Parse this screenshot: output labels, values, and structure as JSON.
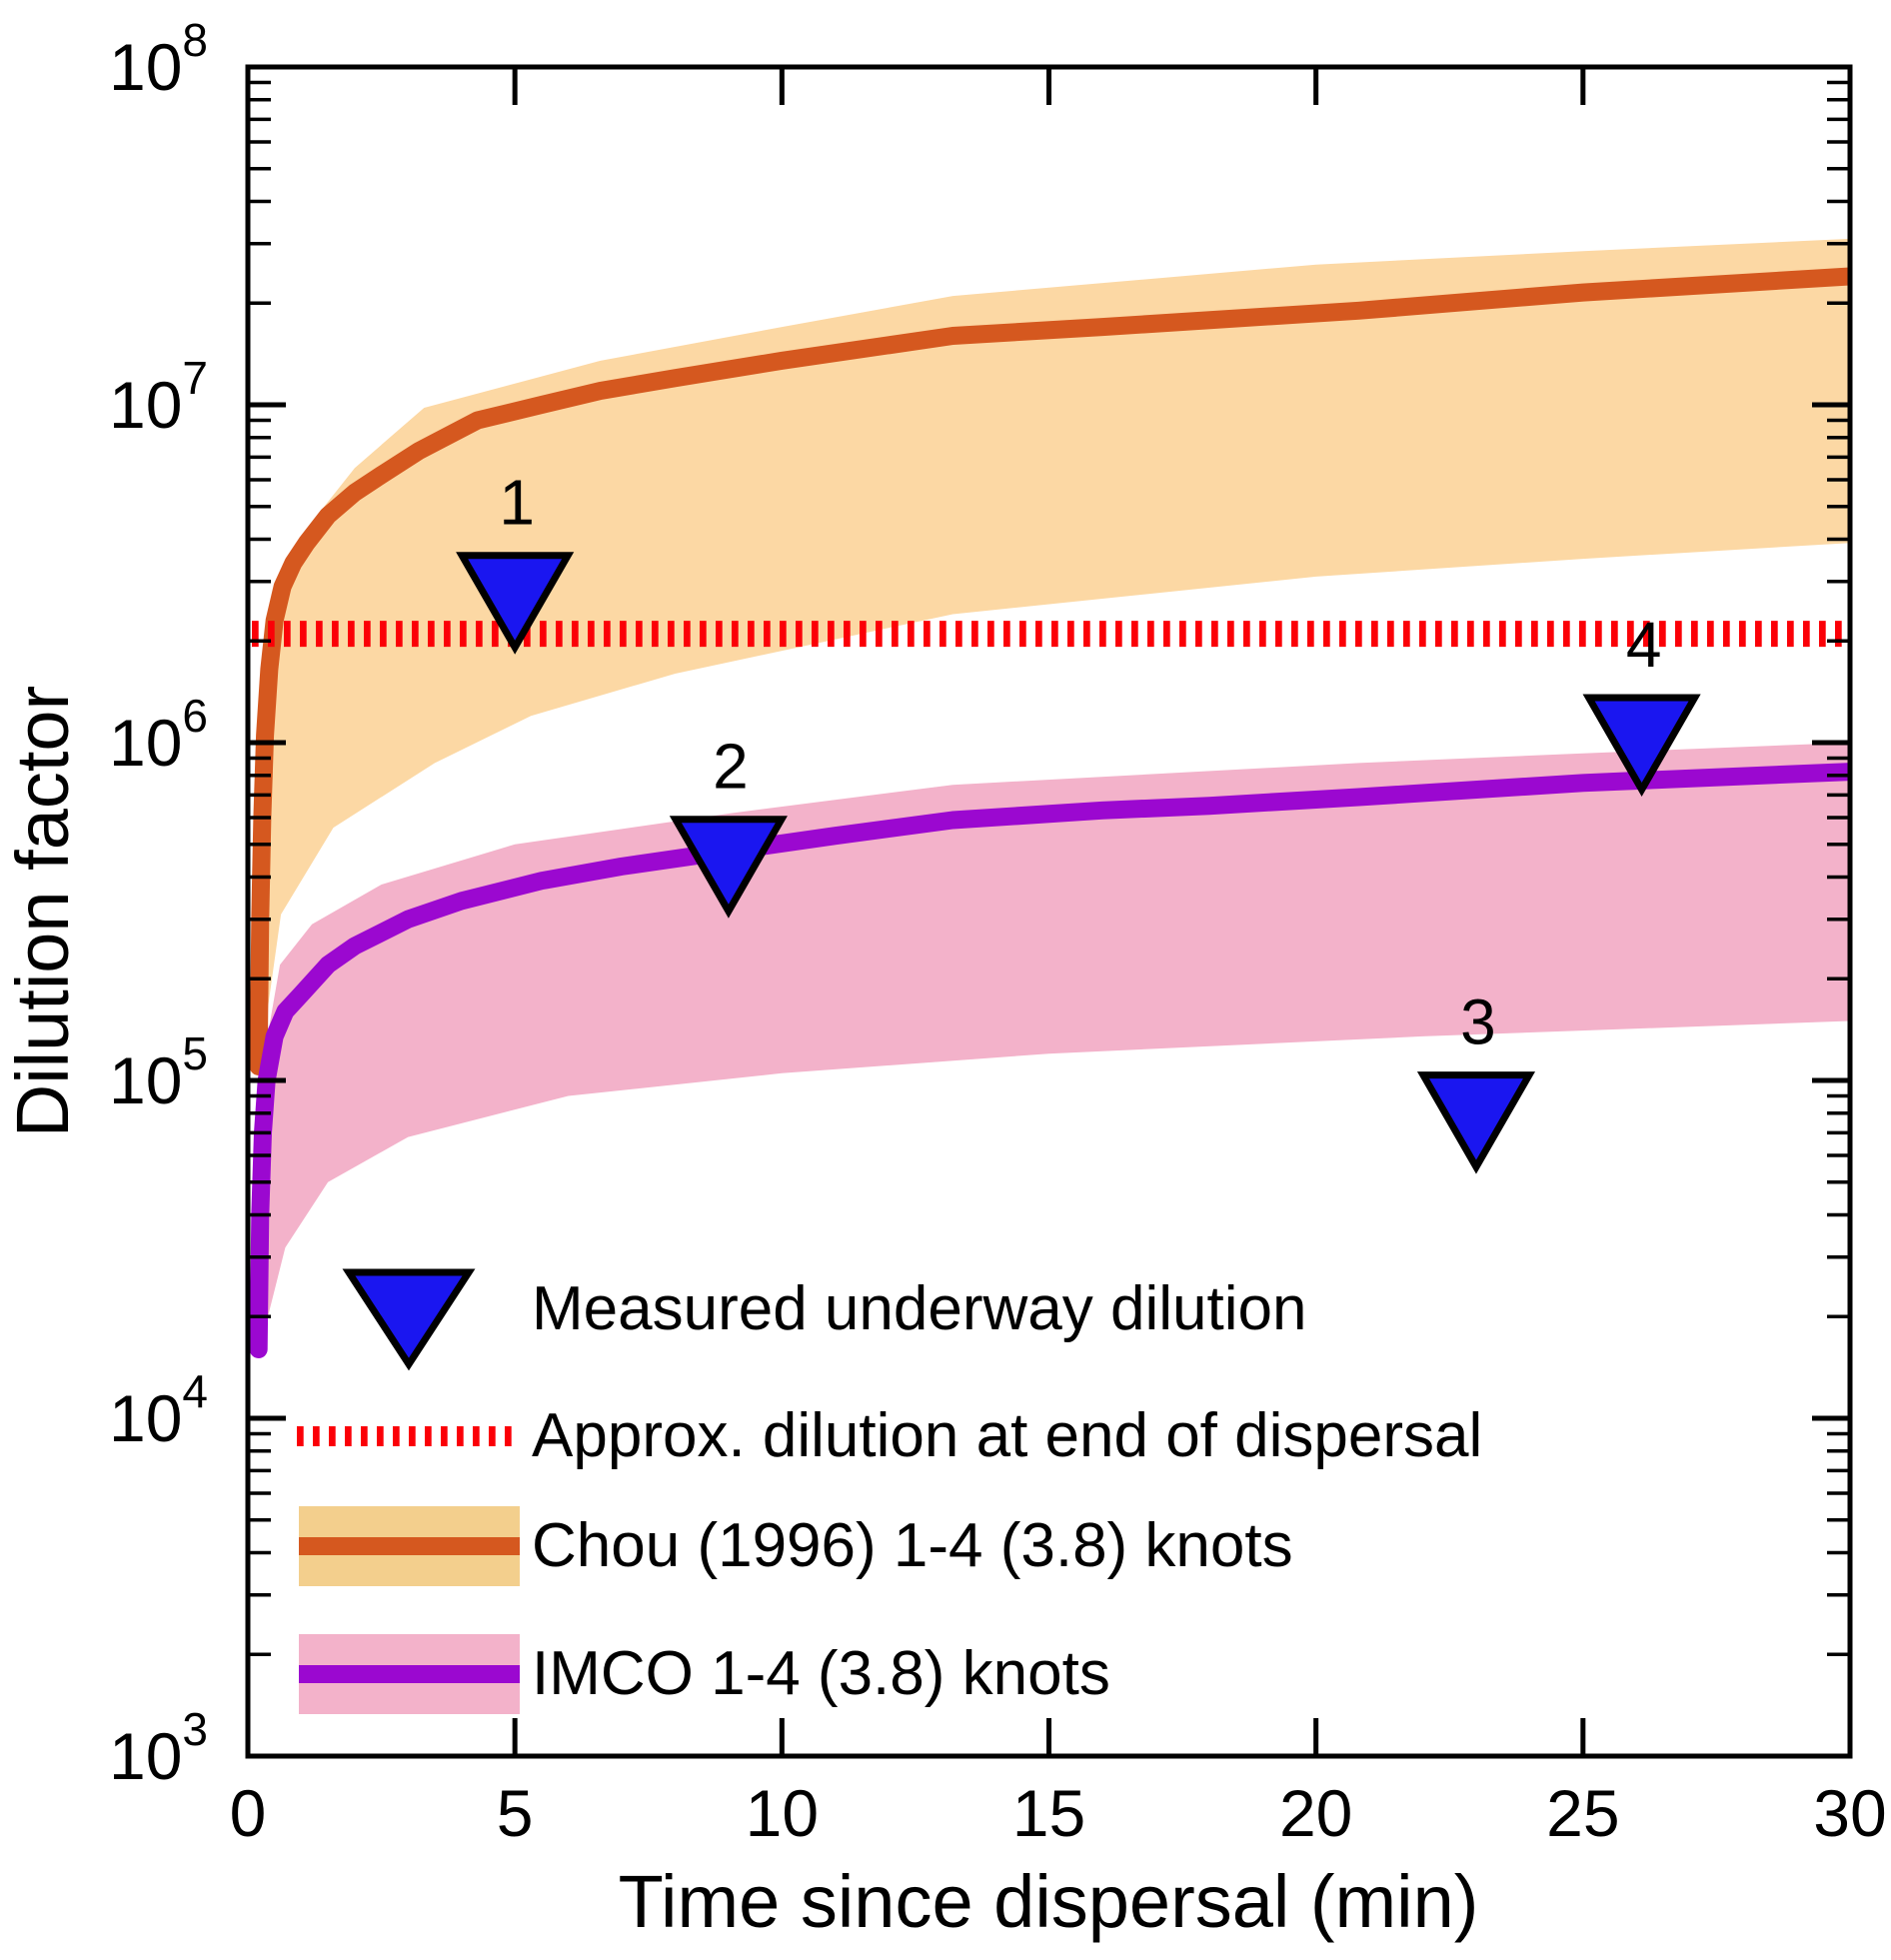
{
  "figure": {
    "background": "#ffffff",
    "axis_color": "#000000"
  },
  "chart_data": {
    "type": "line",
    "title": "",
    "xlabel": "Time since dispersal (min)",
    "ylabel": "Dilution factor",
    "x_range": [
      0,
      30
    ],
    "y_log10_range": [
      3,
      8
    ],
    "x_ticks": [
      0,
      5,
      10,
      15,
      20,
      25,
      30
    ],
    "y_tick_exponents": [
      3,
      4,
      5,
      6,
      7,
      8
    ],
    "y_scale": "log",
    "grid": false,
    "legend_position": "lower-left",
    "reference_line": {
      "label": "Approx. dilution at end of dispersal",
      "value": 2100000,
      "color": "#fb0007",
      "style": "dotted"
    },
    "markers": {
      "name": "Measured underway dilution",
      "shape": "triangle-down",
      "fill": "#1a16f0",
      "edge": "#000000",
      "points": [
        {
          "label": "1",
          "x": 5.0,
          "y": 2900000
        },
        {
          "label": "2",
          "x": 9.0,
          "y": 480000
        },
        {
          "label": "3",
          "x": 23.0,
          "y": 84000
        },
        {
          "label": "4",
          "x": 26.1,
          "y": 1100000
        }
      ]
    },
    "series": [
      {
        "name": "Chou (1996) 1-4 (3.8) knots",
        "color": "#d5581f",
        "band_color": "#fcd8a4",
        "legend_band_color": "#f3cf8d",
        "line": [
          [
            0.2,
            110000
          ],
          [
            0.23,
            300000
          ],
          [
            0.27,
            600000
          ],
          [
            0.32,
            1050000
          ],
          [
            0.4,
            1650000
          ],
          [
            0.5,
            2300000
          ],
          [
            0.65,
            2900000
          ],
          [
            0.85,
            3400000
          ],
          [
            1.1,
            3900000
          ],
          [
            1.5,
            4700000
          ],
          [
            2,
            5500000
          ],
          [
            2.5,
            6200000
          ],
          [
            3.2,
            7300000
          ],
          [
            4.3,
            9000000
          ],
          [
            5.5,
            10000000
          ],
          [
            6.6,
            11000000
          ],
          [
            8,
            12000000
          ],
          [
            10,
            13500000
          ],
          [
            13.2,
            16000000
          ],
          [
            16,
            17000000
          ],
          [
            20.8,
            19000000
          ],
          [
            25,
            21500000
          ],
          [
            30,
            24000000
          ]
        ],
        "band_upper": [
          [
            0.22,
            110000
          ],
          [
            0.3,
            600000
          ],
          [
            0.45,
            1600000
          ],
          [
            0.6,
            2600000
          ],
          [
            1.1,
            4300000
          ],
          [
            2,
            6500000
          ],
          [
            3.3,
            9800000
          ],
          [
            6.6,
            13500000
          ],
          [
            10,
            17000000
          ],
          [
            13.2,
            21000000
          ],
          [
            20,
            26000000
          ],
          [
            25,
            28500000
          ],
          [
            30,
            31000000
          ]
        ],
        "band_lower": [
          [
            0.22,
            110000
          ],
          [
            0.62,
            310000
          ],
          [
            1.6,
            560000
          ],
          [
            3.5,
            870000
          ],
          [
            5.3,
            1200000
          ],
          [
            8,
            1600000
          ],
          [
            13.2,
            2400000
          ],
          [
            20,
            3100000
          ],
          [
            25,
            3500000
          ],
          [
            30,
            3900000
          ]
        ]
      },
      {
        "name": "IMCO 1-4 (3.8) knots",
        "color": "#9b08d0",
        "band_color": "#f3b2ca",
        "legend_band_color": "#f3b2ca",
        "line": [
          [
            0.2,
            16000
          ],
          [
            0.23,
            40000
          ],
          [
            0.28,
            70000
          ],
          [
            0.35,
            100000
          ],
          [
            0.5,
            135000
          ],
          [
            0.7,
            160000
          ],
          [
            1,
            180000
          ],
          [
            1.5,
            220000
          ],
          [
            2,
            250000
          ],
          [
            3,
            300000
          ],
          [
            4,
            340000
          ],
          [
            5.5,
            390000
          ],
          [
            7,
            430000
          ],
          [
            9.1,
            480000
          ],
          [
            11,
            530000
          ],
          [
            13.2,
            590000
          ],
          [
            16,
            630000
          ],
          [
            18,
            650000
          ],
          [
            20.8,
            690000
          ],
          [
            25,
            760000
          ],
          [
            30,
            820000
          ]
        ],
        "band_upper": [
          [
            0.22,
            16000
          ],
          [
            0.35,
            130000
          ],
          [
            0.6,
            220000
          ],
          [
            1.2,
            290000
          ],
          [
            2.5,
            380000
          ],
          [
            5,
            500000
          ],
          [
            9.1,
            620000
          ],
          [
            13.2,
            750000
          ],
          [
            20.8,
            870000
          ],
          [
            25,
            930000
          ],
          [
            30,
            1000000
          ]
        ],
        "band_lower": [
          [
            0.22,
            16000
          ],
          [
            0.7,
            32000
          ],
          [
            1.5,
            50000
          ],
          [
            3,
            68000
          ],
          [
            6,
            90000
          ],
          [
            10,
            105000
          ],
          [
            15,
            120000
          ],
          [
            22,
            135000
          ],
          [
            30,
            150000
          ]
        ]
      }
    ]
  }
}
